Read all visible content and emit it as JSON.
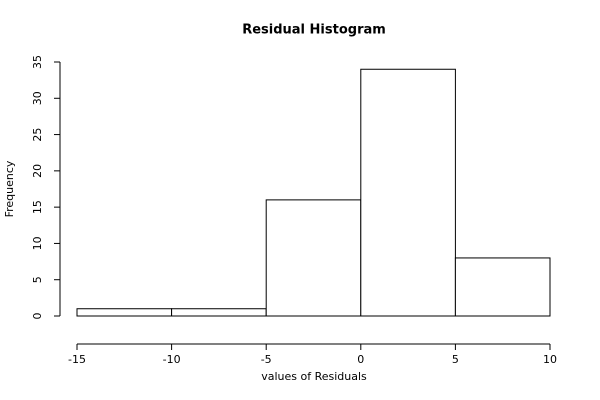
{
  "chart_data": {
    "type": "histogram",
    "title": "Residual Histogram",
    "x_label": "values of Residuals",
    "y_label": "Frequency",
    "bins": [
      -15,
      -10,
      -5,
      0,
      5,
      10
    ],
    "counts": [
      1,
      1,
      16,
      34,
      8
    ],
    "color": "#ffffff",
    "edge_color": "#000000",
    "xlim": [
      -15,
      10
    ],
    "xticks": [
      -15,
      -10,
      -5,
      0,
      5,
      10
    ],
    "ylim": [
      0,
      35
    ],
    "yticks": [
      0,
      5,
      10,
      15,
      20,
      25,
      30,
      35
    ],
    "grid": false
  }
}
